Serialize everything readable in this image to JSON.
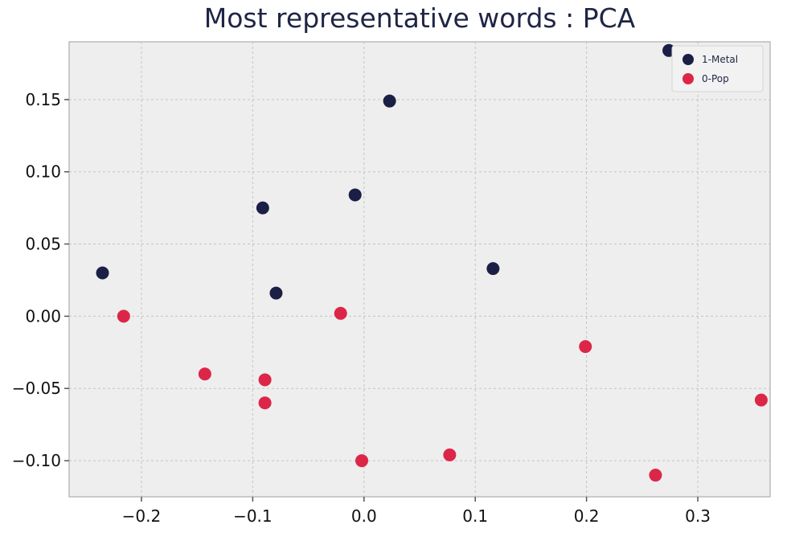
{
  "chart_data": {
    "type": "scatter",
    "title": "Most representative words : PCA",
    "xlabel": "",
    "ylabel": "",
    "xlim": [
      -0.265,
      0.365
    ],
    "ylim": [
      -0.125,
      0.19
    ],
    "x_ticks": [
      -0.2,
      -0.1,
      0.0,
      0.1,
      0.2,
      0.3
    ],
    "x_tick_labels": [
      "−0.2",
      "−0.1",
      "0.0",
      "0.1",
      "0.2",
      "0.3"
    ],
    "y_ticks": [
      -0.1,
      -0.05,
      0.0,
      0.05,
      0.1,
      0.15
    ],
    "y_tick_labels": [
      "−0.10",
      "−0.05",
      "0.00",
      "0.05",
      "0.10",
      "0.15"
    ],
    "grid": true,
    "legend_position": "top-right",
    "series": [
      {
        "name": "1-Metal",
        "color": "#1c1f45",
        "points": [
          {
            "x": 0.274,
            "y": 0.184
          },
          {
            "x": 0.023,
            "y": 0.149
          },
          {
            "x": -0.008,
            "y": 0.084
          },
          {
            "x": -0.091,
            "y": 0.075
          },
          {
            "x": -0.235,
            "y": 0.03
          },
          {
            "x": 0.116,
            "y": 0.033
          },
          {
            "x": -0.079,
            "y": 0.016
          }
        ]
      },
      {
        "name": "0-Pop",
        "color": "#dc2647",
        "points": [
          {
            "x": -0.216,
            "y": 0.0
          },
          {
            "x": -0.021,
            "y": 0.002
          },
          {
            "x": 0.199,
            "y": -0.021
          },
          {
            "x": -0.143,
            "y": -0.04
          },
          {
            "x": -0.089,
            "y": -0.044
          },
          {
            "x": -0.089,
            "y": -0.06
          },
          {
            "x": 0.357,
            "y": -0.058
          },
          {
            "x": 0.077,
            "y": -0.096
          },
          {
            "x": -0.002,
            "y": -0.1
          },
          {
            "x": 0.262,
            "y": -0.11
          }
        ]
      }
    ]
  }
}
